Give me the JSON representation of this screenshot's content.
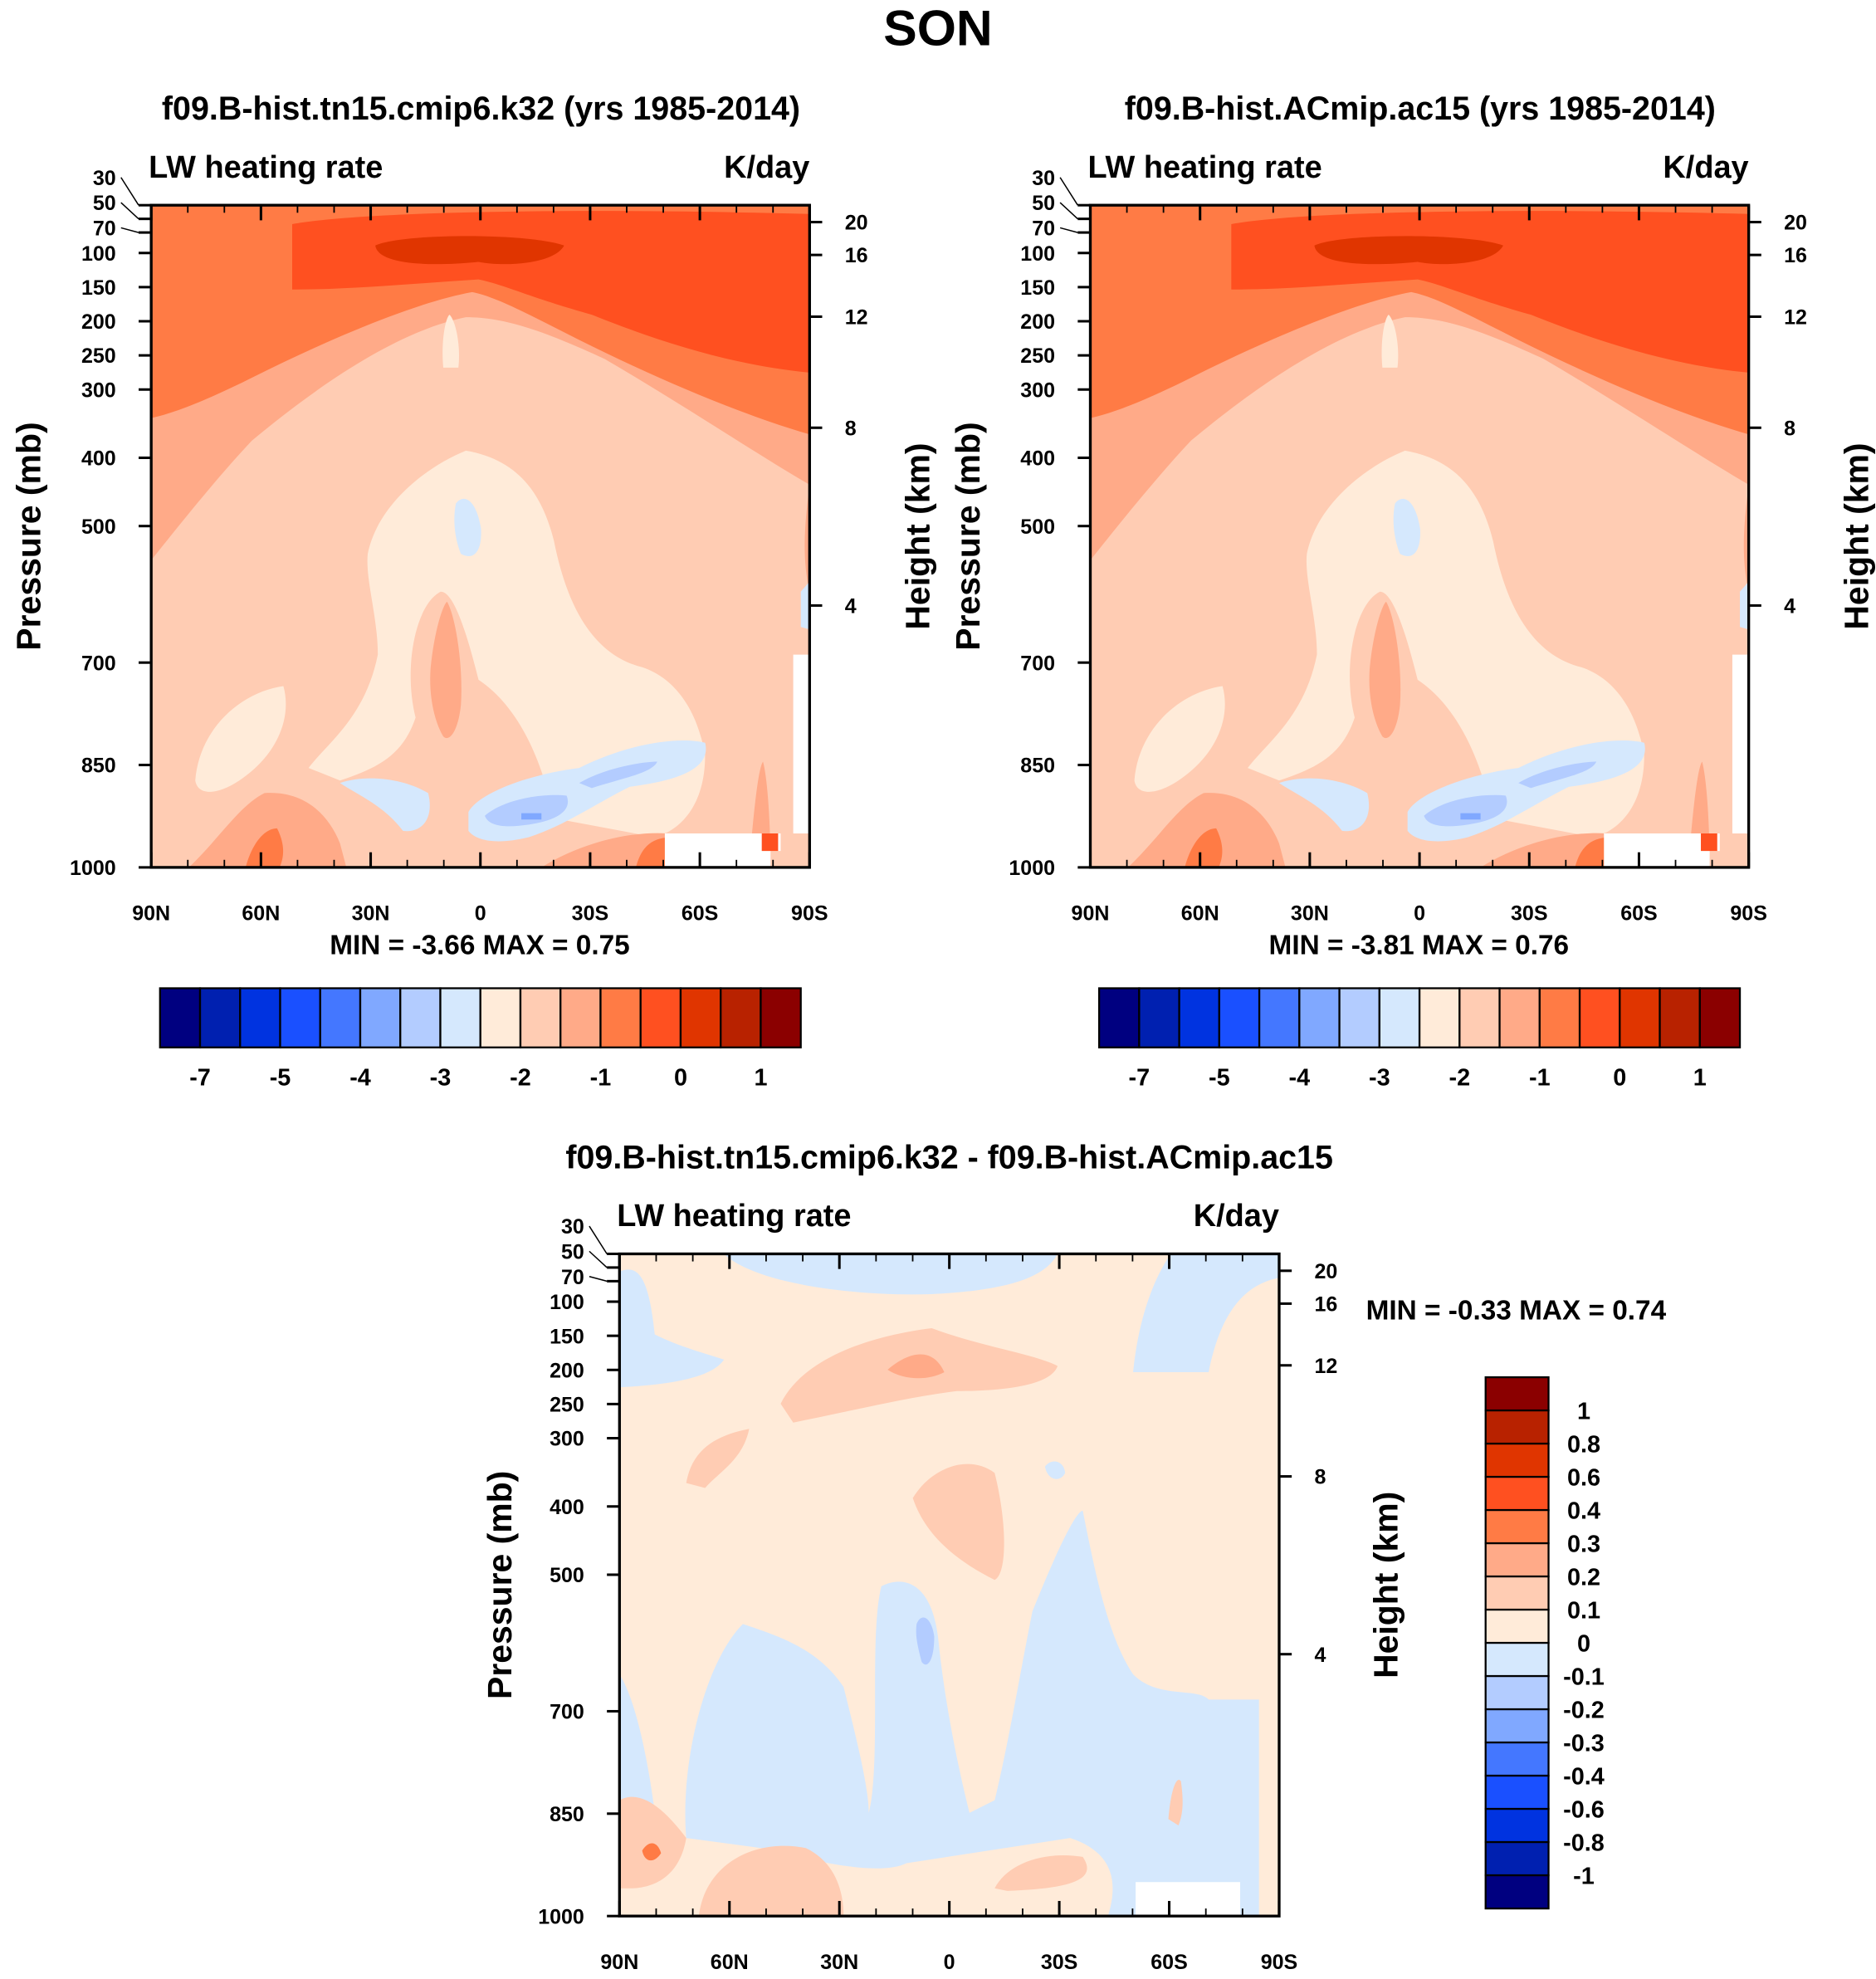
{
  "title": "SON",
  "colors": [
    "#000080",
    "#0020B0",
    "#0033E0",
    "#1A50FF",
    "#4477FF",
    "#80A8FF",
    "#B3CCFF",
    "#D5E8FD",
    "#FFEBD9",
    "#FFCCB3",
    "#FFAA88",
    "#FF7B45",
    "#FF5020",
    "#E03500",
    "#B82200",
    "#8B0000"
  ],
  "panels": [
    {
      "title": "f09.B-hist.tn15.cmip6.k32 (yrs 1985-2014)",
      "left_label": "LW heating rate",
      "right_label": "K/day",
      "minmax": "MIN =  -3.66   MAX =   0.75"
    },
    {
      "title": "f09.B-hist.ACmip.ac15 (yrs 1985-2014)",
      "left_label": "LW heating rate",
      "right_label": "K/day",
      "minmax": "MIN =  -3.81   MAX =   0.76"
    },
    {
      "title": "f09.B-hist.tn15.cmip6.k32 - f09.B-hist.ACmip.ac15",
      "left_label": "LW heating rate",
      "right_label": "K/day",
      "minmax": "MIN =  -0.33   MAX =   0.74"
    }
  ],
  "axes": {
    "ylabel": "Pressure (mb)",
    "ylabel_right": "Height (km)",
    "x_ticks": [
      "90N",
      "60N",
      "30N",
      "0",
      "30S",
      "60S",
      "90S"
    ],
    "x_values": [
      90,
      60,
      30,
      0,
      -30,
      -60,
      -90
    ],
    "p_ticks": [
      "30",
      "50",
      "70",
      "100",
      "150",
      "200",
      "250",
      "300",
      "400",
      "500",
      "700",
      "850",
      "1000"
    ],
    "p_values": [
      30,
      50,
      70,
      100,
      150,
      200,
      250,
      300,
      400,
      500,
      700,
      850,
      1000
    ],
    "z_ticks": [
      "20",
      "16",
      "12",
      "8",
      "4"
    ],
    "z_values": [
      20,
      16,
      12,
      8,
      4
    ]
  },
  "colorbar_main": {
    "labels": [
      "-7",
      "-5",
      "-4",
      "-3",
      "-2",
      "-1",
      "0",
      "1"
    ]
  },
  "colorbar_diff": {
    "labels": [
      "1",
      "0.8",
      "0.6",
      "0.4",
      "0.3",
      "0.2",
      "0.1",
      "0",
      "-0.1",
      "-0.2",
      "-0.3",
      "-0.4",
      "-0.6",
      "-0.8",
      "-1"
    ]
  },
  "chart_data": [
    {
      "type": "heatmap",
      "title": "f09.B-hist.tn15.cmip6.k32 (yrs 1985-2014)",
      "subtitle_left": "LW heating rate",
      "subtitle_right": "K/day",
      "xlabel": "",
      "ylabel": "Pressure (mb)",
      "ylabel_right": "Height (km)",
      "xlim": [
        90,
        -90
      ],
      "ylim": [
        1000,
        30
      ],
      "min": -3.66,
      "max": 0.75
    },
    {
      "type": "heatmap",
      "title": "f09.B-hist.ACmip.ac15 (yrs 1985-2014)",
      "subtitle_left": "LW heating rate",
      "subtitle_right": "K/day",
      "xlabel": "",
      "ylabel": "Pressure (mb)",
      "ylabel_right": "Height (km)",
      "xlim": [
        90,
        -90
      ],
      "ylim": [
        1000,
        30
      ],
      "min": -3.81,
      "max": 0.76
    },
    {
      "type": "heatmap",
      "title": "f09.B-hist.tn15.cmip6.k32 - f09.B-hist.ACmip.ac15",
      "subtitle_left": "LW heating rate",
      "subtitle_right": "K/day",
      "xlabel": "",
      "ylabel": "Pressure (mb)",
      "ylabel_right": "Height (km)",
      "xlim": [
        90,
        -90
      ],
      "ylim": [
        1000,
        30
      ],
      "min": -0.33,
      "max": 0.74
    }
  ]
}
